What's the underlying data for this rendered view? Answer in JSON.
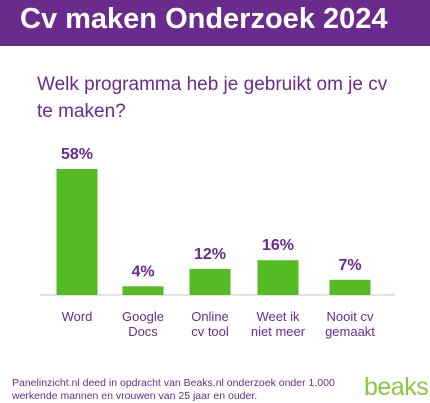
{
  "header": {
    "title": "Cv maken Onderzoek 2024"
  },
  "question": "Welk programma heb je gebruikt om je cv te maken?",
  "chart_data": {
    "type": "bar",
    "title": "",
    "xlabel": "",
    "ylabel": "",
    "ylim": [
      0,
      58
    ],
    "grid": false,
    "legend": "none",
    "categories": [
      "Word",
      "Google Docs",
      "Online cv tool",
      "Weet ik niet meer",
      "Nooit cv gemaakt"
    ],
    "category_lines": [
      [
        "Word"
      ],
      [
        "Google",
        "Docs"
      ],
      [
        "Online",
        "cv tool"
      ],
      [
        "Weet ik",
        "niet meer"
      ],
      [
        "Nooit cv",
        "gemaakt"
      ]
    ],
    "values": [
      58,
      4,
      12,
      16,
      7
    ],
    "data_labels": [
      "58%",
      "4%",
      "12%",
      "16%",
      "7%"
    ]
  },
  "colors": {
    "header_bg": "#6a2c8c",
    "accent_purple": "#6a2c8c",
    "bar_green": "#55bb22",
    "baseline": "#c7c7c7",
    "logo_green": "#8dc63f"
  },
  "footer": {
    "text": "Panelinzicht.nl deed in opdracht van Beaks.nl onderzoek onder 1.000 werkende mannen en vrouwen van 25 jaar en ouder."
  },
  "logo": {
    "text": "beaks"
  }
}
